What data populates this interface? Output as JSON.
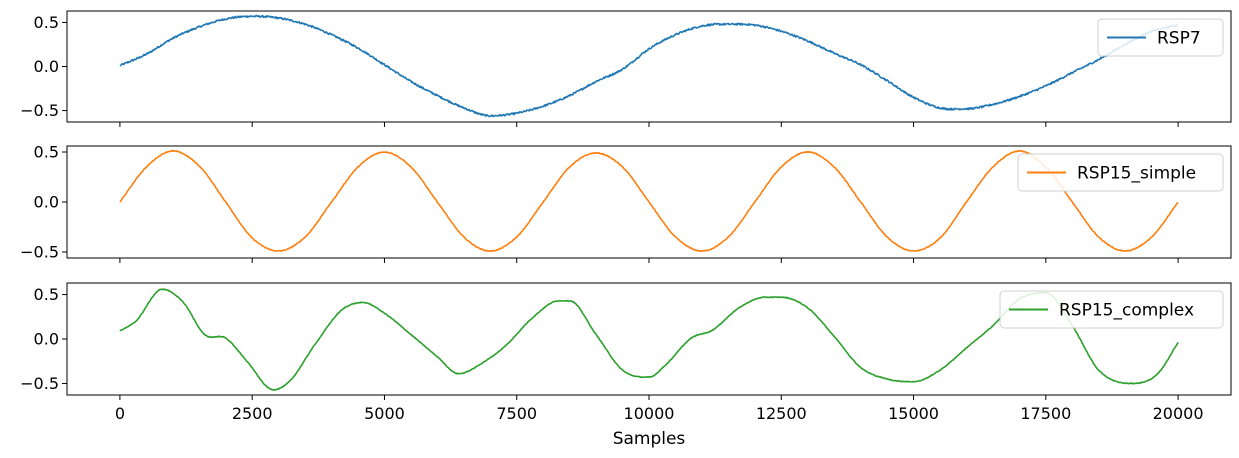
{
  "chart_data": [
    {
      "type": "line",
      "legend_position": "upper-right",
      "x_range": [
        0,
        20000
      ],
      "xlim": [
        -1000,
        21000
      ],
      "ylim": [
        -0.63,
        0.63
      ],
      "yticks": [
        -0.5,
        0.0,
        0.5
      ],
      "ytick_labels": [
        "−0.5",
        "0.0",
        "0.5"
      ],
      "series": [
        {
          "name": "RSP7",
          "color": "#1f77b4",
          "noise": 0.01,
          "x": [
            0,
            500,
            1000,
            1500,
            2000,
            2500,
            3000,
            3500,
            4000,
            4500,
            5000,
            5500,
            6000,
            6500,
            7000,
            7500,
            8000,
            8500,
            9000,
            9500,
            10000,
            10500,
            11000,
            11500,
            12000,
            12500,
            13000,
            13500,
            14000,
            14500,
            15000,
            15500,
            16000,
            16500,
            17000,
            17500,
            18000,
            18500,
            19000,
            19500,
            20000
          ],
          "y": [
            0.01,
            0.14,
            0.32,
            0.45,
            0.54,
            0.57,
            0.55,
            0.48,
            0.36,
            0.21,
            0.02,
            -0.17,
            -0.33,
            -0.47,
            -0.56,
            -0.53,
            -0.45,
            -0.33,
            -0.17,
            -0.03,
            0.2,
            0.36,
            0.46,
            0.48,
            0.47,
            0.4,
            0.29,
            0.15,
            0.02,
            -0.16,
            -0.35,
            -0.47,
            -0.48,
            -0.43,
            -0.34,
            -0.22,
            -0.07,
            0.08,
            0.25,
            0.4,
            0.47
          ]
        }
      ],
      "xlabel": ""
    },
    {
      "type": "line",
      "legend_position": "upper-right",
      "x_range": [
        0,
        20000
      ],
      "xlim": [
        -1000,
        21000
      ],
      "ylim": [
        -0.56,
        0.56
      ],
      "yticks": [
        -0.5,
        0.0,
        0.5
      ],
      "ytick_labels": [
        "−0.5",
        "0.0",
        "0.5"
      ],
      "series": [
        {
          "name": "RSP15_simple",
          "color": "#ff7f0e",
          "noise": 0.004,
          "x": [
            0,
            500,
            1000,
            1500,
            2000,
            2500,
            3000,
            3500,
            4000,
            4500,
            5000,
            5500,
            6000,
            6500,
            7000,
            7500,
            8000,
            8500,
            9000,
            9500,
            10000,
            10500,
            11000,
            11500,
            12000,
            12500,
            13000,
            13500,
            14000,
            14500,
            15000,
            15500,
            16000,
            16500,
            17000,
            17500,
            18000,
            18500,
            19000,
            19500,
            20000
          ],
          "y": [
            0.0,
            0.35,
            0.51,
            0.36,
            0.0,
            -0.36,
            -0.49,
            -0.35,
            0.0,
            0.35,
            0.5,
            0.35,
            0.0,
            -0.35,
            -0.49,
            -0.35,
            0.0,
            0.35,
            0.49,
            0.35,
            0.0,
            -0.35,
            -0.49,
            -0.35,
            0.0,
            0.35,
            0.5,
            0.35,
            0.0,
            -0.35,
            -0.49,
            -0.36,
            0.0,
            0.35,
            0.51,
            0.35,
            0.0,
            -0.35,
            -0.49,
            -0.35,
            0.0
          ]
        }
      ],
      "xlabel": ""
    },
    {
      "type": "line",
      "legend_position": "upper-right",
      "x_range": [
        0,
        20000
      ],
      "xlim": [
        -1000,
        21000
      ],
      "ylim": [
        -0.63,
        0.63
      ],
      "yticks": [
        -0.5,
        0.0,
        0.5
      ],
      "ytick_labels": [
        "−0.5",
        "0.0",
        "0.5"
      ],
      "xticks": [
        0,
        2500,
        5000,
        7500,
        10000,
        12500,
        15000,
        17500,
        20000
      ],
      "xtick_labels": [
        "0",
        "2500",
        "5000",
        "7500",
        "10000",
        "12500",
        "15000",
        "17500",
        "20000"
      ],
      "series": [
        {
          "name": "RSP15_complex",
          "color": "#2ca02c",
          "noise": 0.004,
          "x": [
            0,
            300,
            800,
            1200,
            1600,
            2000,
            2400,
            2900,
            3200,
            3700,
            4200,
            4600,
            5000,
            5500,
            6000,
            6400,
            6900,
            7300,
            7800,
            8300,
            8500,
            9000,
            9500,
            10000,
            10300,
            10800,
            11200,
            11700,
            12200,
            12500,
            13000,
            13500,
            14000,
            14500,
            15000,
            15500,
            16000,
            16500,
            17000,
            17500,
            18000,
            18500,
            19100,
            19600,
            20000
          ],
          "y": [
            0.09,
            0.2,
            0.56,
            0.41,
            0.05,
            0.01,
            -0.25,
            -0.57,
            -0.48,
            -0.05,
            0.33,
            0.41,
            0.29,
            0.05,
            -0.2,
            -0.39,
            -0.25,
            -0.07,
            0.24,
            0.43,
            0.43,
            0.05,
            -0.35,
            -0.43,
            -0.3,
            0.01,
            0.1,
            0.35,
            0.47,
            0.47,
            0.35,
            0.03,
            -0.32,
            -0.45,
            -0.48,
            -0.35,
            -0.1,
            0.15,
            0.45,
            0.52,
            0.15,
            -0.35,
            -0.5,
            -0.4,
            -0.04
          ]
        }
      ],
      "xlabel": "Samples"
    }
  ]
}
